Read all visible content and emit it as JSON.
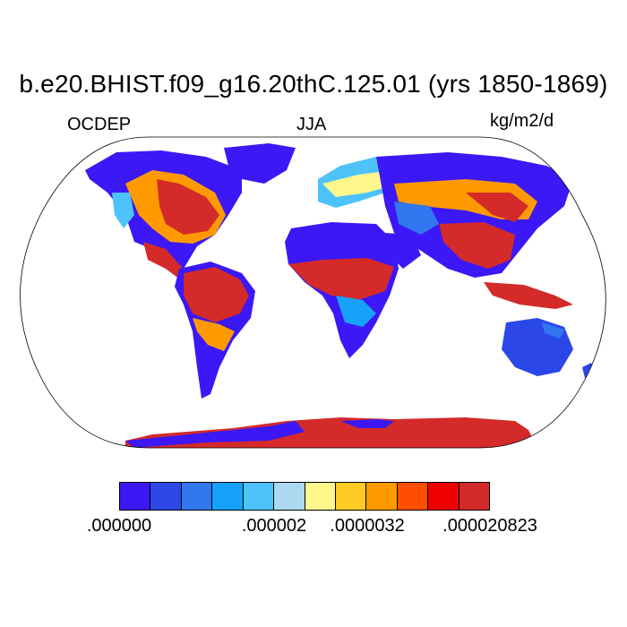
{
  "title": "b.e20.BHIST.f09_g16.20thC.125.01 (yrs 1850-1869)",
  "left_label": "OCDEP",
  "center_label": "JJA",
  "right_label": "kg/m2/d",
  "colorbar": {
    "colors": [
      "#3b18f5",
      "#2b47e8",
      "#3177f0",
      "#16a2fb",
      "#4ec3fb",
      "#acd9f0",
      "#fff78c",
      "#fecb26",
      "#fe9a00",
      "#fe4f00",
      "#f00000",
      "#d42a2a"
    ],
    "tick_labels": [
      ".000000",
      ".000002",
      ".0000032",
      ".000020823"
    ]
  }
}
